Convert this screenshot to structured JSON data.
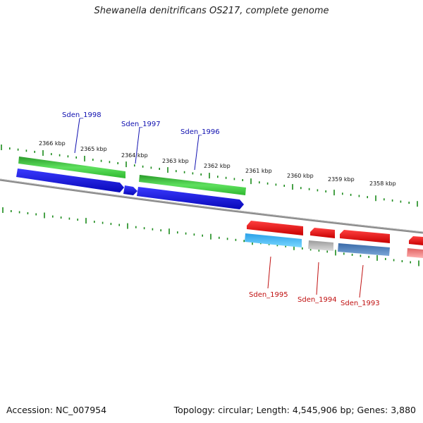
{
  "title": "Shewanella denitrificans OS217, complete genome",
  "footer": {
    "accession": "Accession: NC_007954",
    "summary": "Topology: circular; Length: 4,545,906 bp; Genes: 3,880"
  },
  "ruler": {
    "unit": "kbp",
    "labels": [
      "2366 kbp",
      "2365 kbp",
      "2364 kbp",
      "2363 kbp",
      "2362 kbp",
      "2361 kbp",
      "2360 kbp",
      "2359 kbp",
      "2358 kbp"
    ]
  },
  "colors": {
    "forward_gene": "#1010d8",
    "forward_cds_track": "#3cc83c",
    "reverse_gene": "#e81010",
    "backbone": "#8a8a8a",
    "ticks": "#1a8a1a",
    "forward_label": "#1010b0",
    "reverse_label": "#c01010"
  },
  "genes": {
    "forward": [
      {
        "label": "Sden_1998",
        "strand": "+"
      },
      {
        "label": "Sden_1997",
        "strand": "+"
      },
      {
        "label": "Sden_1996",
        "strand": "+"
      }
    ],
    "reverse": [
      {
        "label": "Sden_1995",
        "strand": "-"
      },
      {
        "label": "Sden_1994",
        "strand": "-"
      },
      {
        "label": "Sden_1993",
        "strand": "-"
      }
    ]
  }
}
